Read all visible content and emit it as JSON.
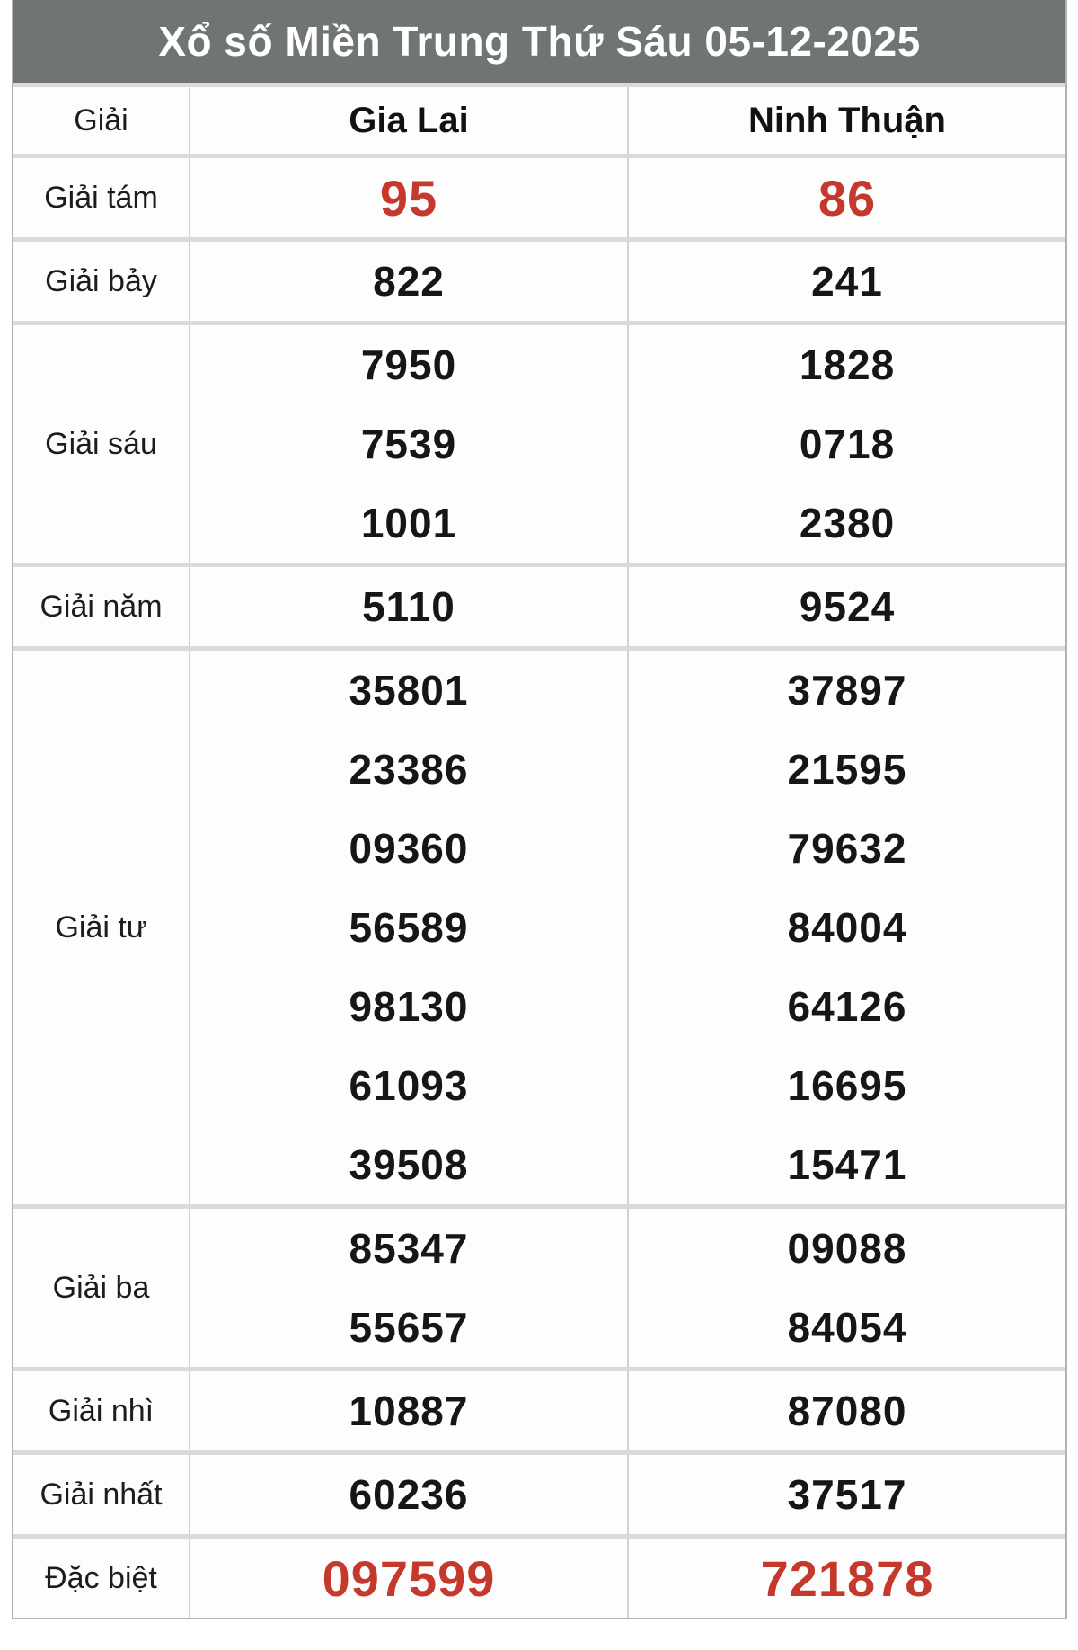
{
  "page": {
    "title": "Xổ số Miền Trung Thứ Sáu 05-12-2025"
  },
  "table": {
    "columns": [
      "Giải",
      "Gia Lai",
      "Ninh Thuận"
    ],
    "rows": [
      {
        "label": "Giải tám",
        "highlight": true,
        "gia_lai": [
          "95"
        ],
        "ninh_thuan": [
          "86"
        ]
      },
      {
        "label": "Giải bảy",
        "highlight": false,
        "gia_lai": [
          "822"
        ],
        "ninh_thuan": [
          "241"
        ]
      },
      {
        "label": "Giải sáu",
        "highlight": false,
        "gia_lai": [
          "7950",
          "7539",
          "1001"
        ],
        "ninh_thuan": [
          "1828",
          "0718",
          "2380"
        ]
      },
      {
        "label": "Giải năm",
        "highlight": false,
        "gia_lai": [
          "5110"
        ],
        "ninh_thuan": [
          "9524"
        ]
      },
      {
        "label": "Giải tư",
        "highlight": false,
        "gia_lai": [
          "35801",
          "23386",
          "09360",
          "56589",
          "98130",
          "61093",
          "39508"
        ],
        "ninh_thuan": [
          "37897",
          "21595",
          "79632",
          "84004",
          "64126",
          "16695",
          "15471"
        ]
      },
      {
        "label": "Giải ba",
        "highlight": false,
        "gia_lai": [
          "85347",
          "55657"
        ],
        "ninh_thuan": [
          "09088",
          "84054"
        ]
      },
      {
        "label": "Giải nhì",
        "highlight": false,
        "gia_lai": [
          "10887"
        ],
        "ninh_thuan": [
          "87080"
        ]
      },
      {
        "label": "Giải nhất",
        "highlight": false,
        "gia_lai": [
          "60236"
        ],
        "ninh_thuan": [
          "37517"
        ]
      },
      {
        "label": "Đặc biệt",
        "highlight": true,
        "gia_lai": [
          "097599"
        ],
        "ninh_thuan": [
          "721878"
        ]
      }
    ]
  },
  "colors": {
    "header_bg": "#6e7573",
    "highlight_red": "#c5392d",
    "number_black": "#161616",
    "grid_gap": "#d8dbda",
    "outer_border": "#b0b4b3"
  }
}
